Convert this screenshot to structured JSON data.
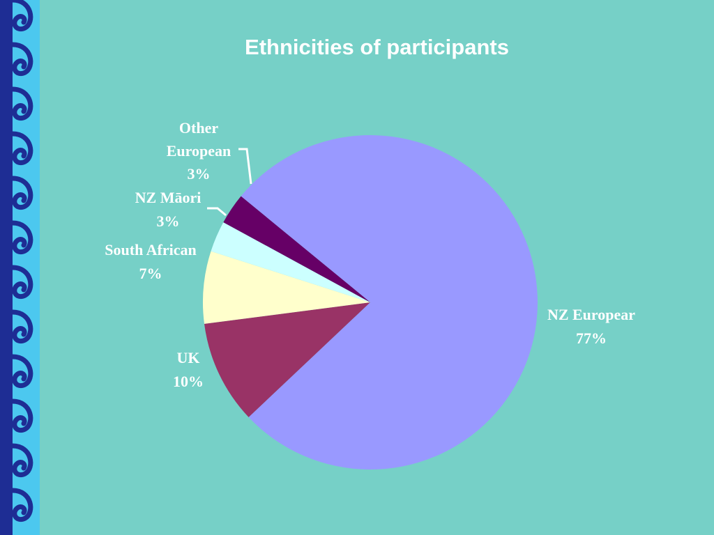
{
  "slide": {
    "title": "Ethnicities of participants"
  },
  "decor": {
    "border_pattern": "koru-wave-border",
    "colors": {
      "background": "#76D0C7",
      "border_dark": "#1E2D94",
      "border_light": "#4CC8EF"
    }
  },
  "chart_data": {
    "type": "pie",
    "title": "Ethnicities of participants",
    "slices": [
      {
        "label": "NZ European",
        "display_label": "NZ Europear",
        "value": 77,
        "value_label": "77%",
        "color": "#9999FF"
      },
      {
        "label": "UK",
        "display_label": "UK",
        "value": 10,
        "value_label": "10%",
        "color": "#993366"
      },
      {
        "label": "South African",
        "display_label": "South African",
        "value": 7,
        "value_label": "7%",
        "color": "#FFFFCC"
      },
      {
        "label": "NZ Māori",
        "display_label": "NZ Māori",
        "value": 3,
        "value_label": "3%",
        "color": "#CCFFFF"
      },
      {
        "label": "Other European",
        "display_label": "Other European",
        "value": 3,
        "value_label": "3%",
        "color": "#660066"
      }
    ],
    "legend": "none",
    "data_labels": "outside"
  }
}
